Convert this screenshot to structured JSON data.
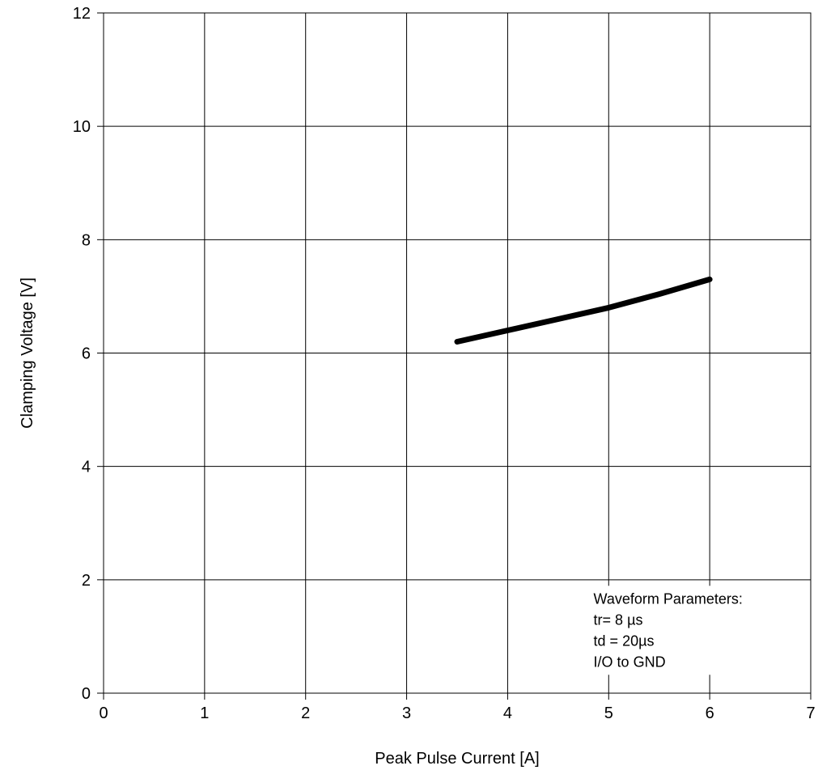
{
  "chart_data": {
    "type": "line",
    "title": "",
    "xlabel": "Peak Pulse Current [A]",
    "ylabel": "Clamping Voltage [V]",
    "xlim": [
      0,
      7
    ],
    "ylim": [
      0,
      12
    ],
    "x_ticks": [
      0,
      1,
      2,
      3,
      4,
      5,
      6,
      7
    ],
    "y_ticks": [
      0,
      2,
      4,
      6,
      8,
      10,
      12
    ],
    "grid": true,
    "line_color": "#000000",
    "series": [
      {
        "x": [
          3.5,
          4.0,
          4.5,
          5.0,
          5.5,
          6.0
        ],
        "y": [
          6.2,
          6.4,
          6.6,
          6.8,
          7.04,
          7.3
        ]
      }
    ],
    "annotation": {
      "lines": [
        "Waveform Parameters:",
        "tr= 8 µs",
        "td = 20µs",
        "I/O to GND"
      ],
      "anchor_x": 4.85,
      "anchor_y": 1.58
    }
  }
}
